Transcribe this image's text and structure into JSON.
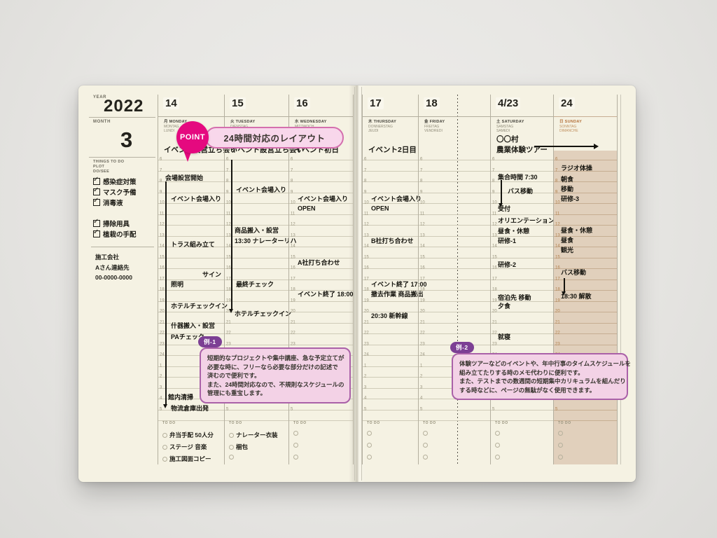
{
  "sidebar": {
    "year_label": "YEAR",
    "year": "2022",
    "month_label": "MONTH",
    "month": "3",
    "things_lines": [
      "THINGS TO DO",
      "PLOT",
      "DO/SEE"
    ],
    "checklist": [
      "感染症対策",
      "マスク予備",
      "消毒液",
      "掃除用具",
      "植栽の手配"
    ],
    "contact_lines": [
      "施工会社",
      "Aさん連絡先",
      "00-0000-0000"
    ]
  },
  "grid": {
    "todo_label": "TO DO",
    "hour_labels": [
      "6",
      "7",
      "8",
      "9",
      "10",
      "11",
      "12",
      "13",
      "14",
      "15",
      "16",
      "17",
      "18",
      "19",
      "20",
      "21",
      "22",
      "23",
      "24",
      "1",
      "2",
      "3",
      "4",
      "5"
    ]
  },
  "days": [
    {
      "date": "14",
      "dow_jp": "月",
      "dow_en": "MONDAY",
      "dow_de": "MONTAG",
      "dow_fr": "LUNDI",
      "allday": [
        "イベント設営立ち会い"
      ],
      "events": [
        {
          "h": 7.7,
          "label": "会場設営開始",
          "indent": 10
        },
        {
          "h": 9.6,
          "label": "イベント会場入り",
          "indent": 18
        },
        {
          "h": 13.8,
          "label": "トラス組み立て",
          "indent": 18
        },
        {
          "h": 16.6,
          "label": "サイン",
          "align": "right"
        },
        {
          "h": 17.5,
          "label": "照明",
          "indent": 18
        },
        {
          "h": 19.5,
          "label": "ホテルチェックイン",
          "indent": 18
        },
        {
          "h": 21.3,
          "label": "什器搬入・設営",
          "indent": 18
        },
        {
          "h": 22.3,
          "label": "PAチェック",
          "indent": 18
        },
        {
          "h": 27.9,
          "label": "館内清掃",
          "indent": 14
        },
        {
          "h": 28.9,
          "label": "物流倉庫出発",
          "indent": 18
        }
      ],
      "vlines": [
        {
          "from": 8.0,
          "to": 28.6,
          "x": 10,
          "arrow": true
        }
      ],
      "todos": [
        "弁当手配 50人分",
        "ステージ 音楽",
        "施工図面コピー"
      ]
    },
    {
      "date": "15",
      "dow_jp": "火",
      "dow_en": "TUESDAY",
      "dow_de": "DIENSTAG",
      "dow_fr": "MARDI",
      "allday": [
        "イベント設営立ち会い"
      ],
      "events": [
        {
          "h": 8.8,
          "label": "イベント会場入り",
          "indent": 16
        },
        {
          "h": 12.5,
          "label": "商品搬入・設営",
          "indent": 14
        },
        {
          "h": 13.5,
          "label": "13:30 ナレーターリハ",
          "indent": 14
        },
        {
          "h": 17.5,
          "label": "最終チェック",
          "indent": 16
        },
        {
          "h": 20.2,
          "label": "ホテルチェックイン",
          "indent": 14
        }
      ],
      "vlines": [
        {
          "from": 6.0,
          "to": 19.8,
          "x": 9,
          "arrow": true
        }
      ],
      "todos": [
        "ナレーター衣装",
        "梱包"
      ]
    },
    {
      "date": "16",
      "dow_jp": "水",
      "dow_en": "WEDNESDAY",
      "dow_de": "MITTWOCH",
      "dow_fr": "MERCREDI",
      "allday": [
        "イベント初日"
      ],
      "events": [
        {
          "h": 9.6,
          "label": "イベント会場入り",
          "indent": 12
        },
        {
          "h": 10.5,
          "label": "OPEN",
          "indent": 12
        },
        {
          "h": 15.5,
          "label": "A社打ち合わせ",
          "indent": 12
        },
        {
          "h": 18.4,
          "label": "イベント終了 18:00",
          "indent": 12
        }
      ],
      "vlines": [],
      "todos": []
    },
    {
      "date": "17",
      "dow_jp": "木",
      "dow_en": "THURSDAY",
      "dow_de": "DONNERSTAG",
      "dow_fr": "JEUDI",
      "allday": [
        "イベント2日目"
      ],
      "events": [
        {
          "h": 9.6,
          "label": "イベント会場入り",
          "indent": 12
        },
        {
          "h": 10.5,
          "label": "OPEN",
          "indent": 12
        },
        {
          "h": 13.5,
          "label": "B社打ち合わせ",
          "indent": 12
        },
        {
          "h": 17.5,
          "label": "イベント終了 17:00",
          "indent": 12
        },
        {
          "h": 18.4,
          "label": "撤去作業 商品搬出",
          "indent": 12
        },
        {
          "h": 20.4,
          "label": "20:30 新幹線",
          "indent": 12
        }
      ],
      "vlines": [],
      "todos": []
    },
    {
      "date": "18",
      "dow_jp": "金",
      "dow_en": "FRIDAY",
      "dow_de": "FREITAG",
      "dow_fr": "VENDREDI",
      "allday": [],
      "events": [],
      "vlines": [],
      "todos": []
    },
    {
      "type": "spacer"
    },
    {
      "date": "4/23",
      "dow_jp": "土",
      "dow_en": "SATURDAY",
      "dow_de": "SAMSTAG",
      "dow_fr": "SAMEDI",
      "allday": [
        "〇〇村",
        "農業体験ツアー"
      ],
      "allday_arrow": true,
      "events": [
        {
          "h": 7.6,
          "label": "集合時間 7:30",
          "indent": 10
        },
        {
          "h": 8.9,
          "label": "バス移動",
          "indent": 24
        },
        {
          "h": 10.5,
          "label": "受付",
          "indent": 10
        },
        {
          "h": 11.6,
          "label": "オリエンテーション",
          "indent": 10
        },
        {
          "h": 12.6,
          "label": "昼食・休憩",
          "indent": 10
        },
        {
          "h": 13.5,
          "label": "研修-1",
          "indent": 10
        },
        {
          "h": 15.7,
          "label": "研修-2",
          "indent": 10
        },
        {
          "h": 18.7,
          "label": "宿泊先 移動",
          "indent": 10
        },
        {
          "h": 19.5,
          "label": "夕食",
          "indent": 10
        },
        {
          "h": 22.3,
          "label": "就寝",
          "indent": 10
        }
      ],
      "vlines": [
        {
          "from": 7.9,
          "to": 10.05,
          "x": 14,
          "arrow": true
        }
      ],
      "todos": []
    },
    {
      "date": "24",
      "dow_jp": "日",
      "dow_en": "SUNDAY",
      "dow_de": "SONNTAG",
      "dow_fr": "DIMANCHE",
      "sunday": true,
      "allday": [],
      "events": [
        {
          "h": 6.8,
          "label": "ラジオ体操",
          "indent": 10
        },
        {
          "h": 7.8,
          "label": "朝食",
          "indent": 10
        },
        {
          "h": 8.7,
          "label": "移動",
          "indent": 10
        },
        {
          "h": 9.6,
          "label": "研修-3",
          "indent": 10
        },
        {
          "h": 12.5,
          "label": "昼食・休憩",
          "indent": 10
        },
        {
          "h": 13.4,
          "label": "昼食",
          "indent": 10
        },
        {
          "h": 14.3,
          "label": "観光",
          "indent": 10
        },
        {
          "h": 16.4,
          "label": "バス移動",
          "indent": 10
        },
        {
          "h": 18.6,
          "label": "18:30 解散",
          "indent": 10
        }
      ],
      "vlines": [
        {
          "from": 16.9,
          "to": 18.2,
          "x": 14,
          "arrow": true
        }
      ],
      "todos": []
    }
  ],
  "point": {
    "label": "POINT",
    "text": "24時間対応のレイアウト"
  },
  "callouts": [
    {
      "tag": "例-1",
      "lines": [
        "短期的なプロジェクトや集中講座、急な予定立てが",
        "必要な時に、フリーなら必要な部分だけの記述で",
        "済むので便利です。",
        "また、24時間対応なので、不規則なスケジュールの",
        "管理にも重宝します。"
      ]
    },
    {
      "tag": "例-2",
      "lines": [
        "体験ツアーなどのイベントや、年中行事のタイムスケジュールを",
        "組み立てたりする時のメモ代わりに便利です。",
        "また、テストまでの数週間の短期集中カリキュラムを組んだり",
        "する時などに、ページの無駄がなく使用できます。"
      ]
    }
  ],
  "colors": {
    "accent_magenta": "#e5097f",
    "tag_purple": "#7c3f94",
    "callout_pink": "#f3d2e6",
    "sunday_tan": "#e1d0bc",
    "paper_cream": "#f5f2e3"
  }
}
